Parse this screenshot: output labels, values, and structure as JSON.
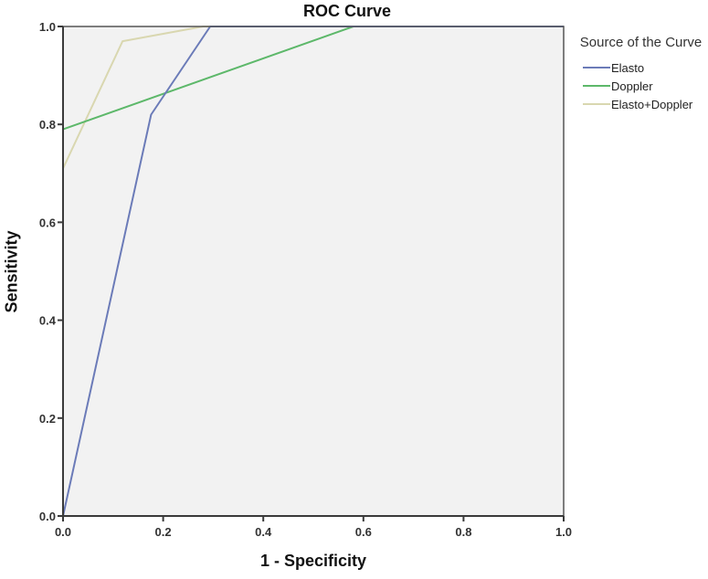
{
  "chart": {
    "title": "ROC Curve",
    "xlabel": "1 - Specificity",
    "ylabel": "Sensitivity",
    "legend_title": "Source of the Curve",
    "legend": [
      {
        "label": "Elasto",
        "color": "#6b7bb8"
      },
      {
        "label": "Doppler",
        "color": "#5db86a"
      },
      {
        "label": "Elasto+Doppler",
        "color": "#d9d7b0"
      }
    ],
    "background": "#f2f2f2"
  },
  "chart_data": {
    "type": "line",
    "title": "ROC Curve",
    "xlabel": "1 - Specificity",
    "ylabel": "Sensitivity",
    "xlim": [
      0.0,
      1.0
    ],
    "ylim": [
      0.0,
      1.0
    ],
    "xticks": [
      "0.0",
      "0.2",
      "0.4",
      "0.6",
      "0.8",
      "1.0"
    ],
    "yticks": [
      "0.0",
      "0.2",
      "0.4",
      "0.6",
      "0.8",
      "1.0"
    ],
    "grid": false,
    "legend_position": "right",
    "legend_title": "Source of the Curve",
    "series": [
      {
        "name": "Elasto",
        "color": "#6b7bb8",
        "x": [
          0.0,
          0.176,
          0.294,
          1.0
        ],
        "y": [
          0.0,
          0.82,
          1.0,
          1.0
        ]
      },
      {
        "name": "Doppler",
        "color": "#5db86a",
        "x": [
          0.0,
          0.0,
          0.58,
          1.0
        ],
        "y": [
          0.0,
          0.79,
          1.0,
          1.0
        ]
      },
      {
        "name": "Elasto+Doppler",
        "color": "#d9d7b0",
        "x": [
          0.0,
          0.0,
          0.119,
          0.28,
          1.0
        ],
        "y": [
          0.0,
          0.71,
          0.97,
          1.0,
          1.0
        ]
      }
    ]
  }
}
